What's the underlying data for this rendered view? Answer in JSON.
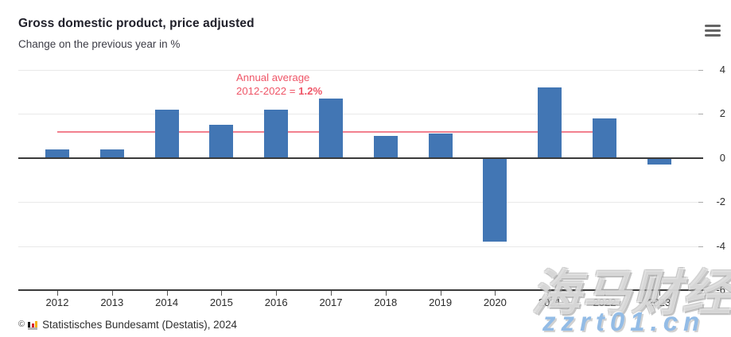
{
  "header": {
    "title": "Gross domestic product, price adjusted",
    "subtitle": "Change on the previous year in %",
    "menu_icon": "hamburger-menu"
  },
  "chart_data": {
    "type": "bar",
    "title": "Gross domestic product, price adjusted",
    "subtitle": "Change on the previous year in %",
    "unit": "%",
    "categories": [
      "2012",
      "2013",
      "2014",
      "2015",
      "2016",
      "2017",
      "2018",
      "2019",
      "2020",
      "2021",
      "2022",
      "2023"
    ],
    "values": [
      0.4,
      0.4,
      2.2,
      1.5,
      2.2,
      2.7,
      1.0,
      1.1,
      -3.8,
      3.2,
      1.8,
      -0.3
    ],
    "ylim": [
      -6,
      4
    ],
    "yticks": [
      4,
      2,
      0,
      -2,
      -4,
      -6
    ],
    "grid": true,
    "legend": "none",
    "bar_color": "#4276b4",
    "average_line": {
      "value": 1.2,
      "from_category": "2012",
      "to_category": "2022",
      "color": "#f2808e",
      "label_line1": "Annual average",
      "label_line2_prefix": "2012-2022 = ",
      "label_line2_value": "1.2%",
      "label_color": "#ef5668"
    }
  },
  "footer": {
    "copyright": "©",
    "source": "Statistisches Bundesamt (Destatis), 2024",
    "logo_colors": {
      "bar1": "#1a1a1a",
      "bar2": "#d6212a",
      "bar3": "#f5b314",
      "base": "#b3b3b3"
    }
  },
  "watermark": {
    "line1": "海马财经",
    "line2": "zzrt01.cn",
    "line2_color": "#93bce6"
  }
}
